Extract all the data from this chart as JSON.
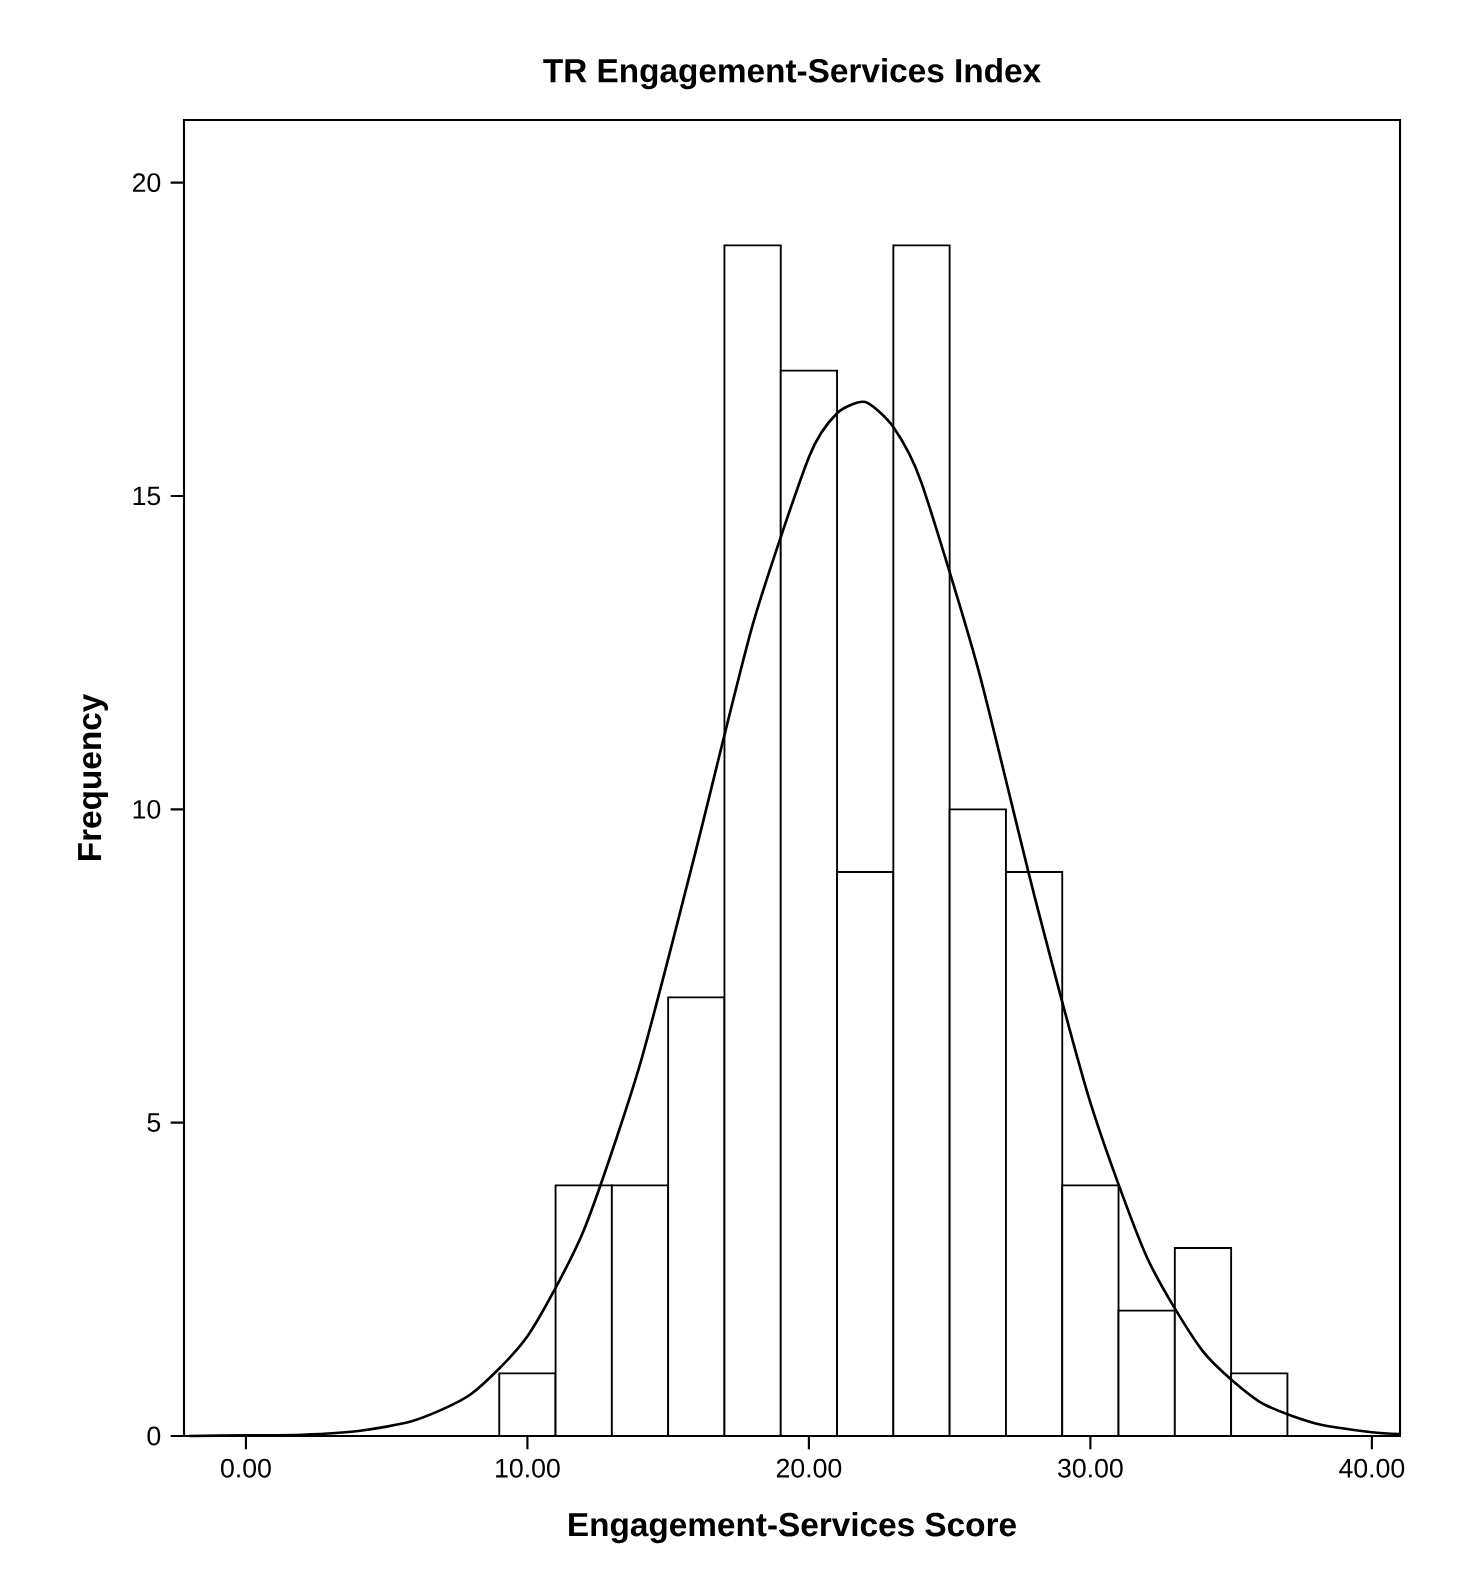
{
  "chart_data": {
    "type": "histogram",
    "title": "TR Engagement-Services Index",
    "xlabel": "Engagement-Services Score",
    "ylabel": "Frequency",
    "bins": [
      9,
      11,
      13,
      15,
      17,
      19,
      21,
      23,
      25,
      27,
      29,
      31,
      33,
      35,
      37
    ],
    "values": [
      1,
      4,
      4,
      7,
      19,
      17,
      9,
      19,
      10,
      9,
      4,
      2,
      3,
      1
    ],
    "color": "#ffffff",
    "series": [
      {
        "type": "line",
        "color": "#000000",
        "x": [
          -2,
          0,
          2,
          4,
          6,
          8,
          10,
          12,
          14,
          16,
          18,
          20,
          21,
          22,
          23,
          24,
          26,
          28,
          30,
          32,
          34,
          36,
          38,
          40,
          41
        ],
        "values": [
          0.0,
          0.01,
          0.02,
          0.08,
          0.25,
          0.67,
          1.59,
          3.28,
          5.93,
          9.37,
          12.94,
          15.62,
          16.32,
          16.5,
          16.1,
          15.21,
          12.26,
          8.64,
          5.32,
          2.86,
          1.35,
          0.55,
          0.2,
          0.06,
          0.03
        ]
      }
    ],
    "xlim": [
      -2.2,
      41
    ],
    "ylim": [
      0,
      21
    ],
    "xticks": [
      {
        "value": 0,
        "label": "0.00"
      },
      {
        "value": 10,
        "label": "10.00"
      },
      {
        "value": 20,
        "label": "20.00"
      },
      {
        "value": 30,
        "label": "30.00"
      },
      {
        "value": 40,
        "label": "40.00"
      }
    ],
    "yticks": [
      0,
      5,
      10,
      15,
      20
    ]
  }
}
